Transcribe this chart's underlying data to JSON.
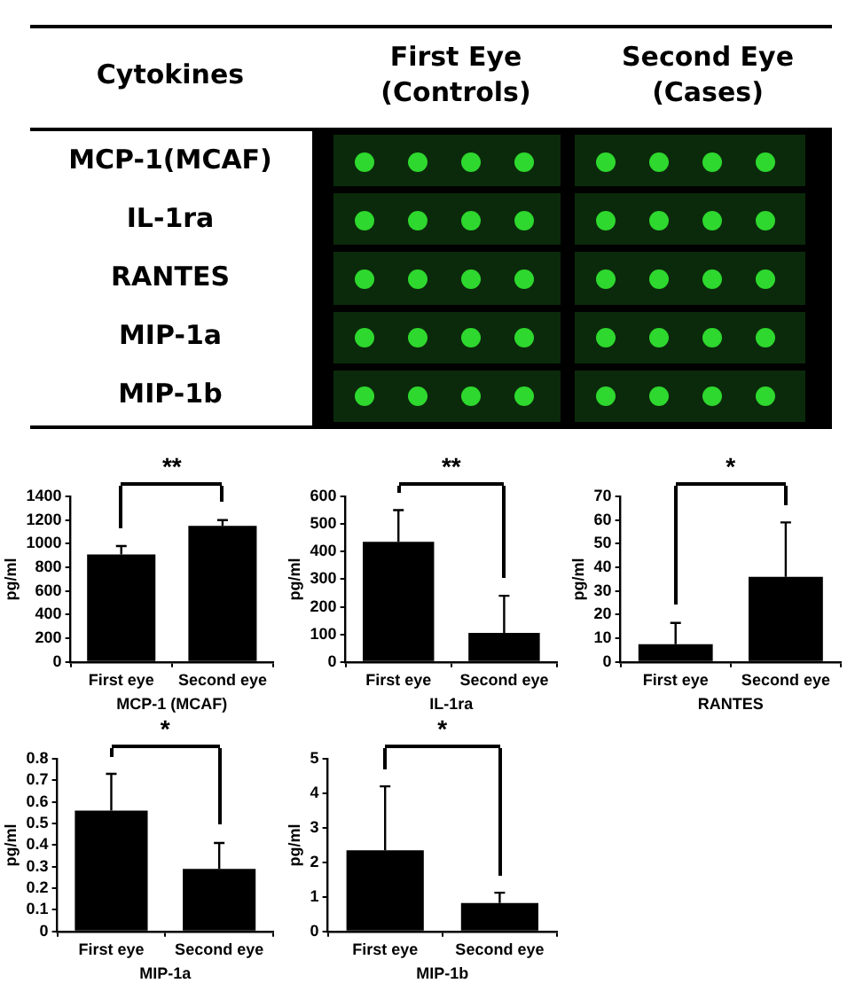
{
  "chart_data": [
    {
      "type": "other",
      "annotations": [
        "Cytokines",
        "First Eye\n(Controls)",
        "Second Eye\n(Cases)",
        "MCP-1(MCAF)",
        "IL-1ra",
        "RANTES",
        "MIP-1a",
        "MIP-1b"
      ]
    },
    {
      "type": "bar",
      "categories": [
        "First eye",
        "Second eye"
      ],
      "values": [
        910,
        1150
      ],
      "errors": [
        [
          910,
          980
        ],
        [
          1150,
          1200
        ]
      ],
      "color": "#000000",
      "xlabel": "MCP-1 (MCAF)",
      "ylabel": "pg/ml",
      "ylim": [
        0,
        1400
      ],
      "yticks": [
        0,
        200,
        400,
        600,
        800,
        1000,
        1200,
        1400
      ],
      "annotations": [
        "**"
      ],
      "grid": false,
      "legend": false
    },
    {
      "type": "bar",
      "categories": [
        "First eye",
        "Second eye"
      ],
      "values": [
        435,
        105
      ],
      "errors": [
        [
          435,
          550
        ],
        [
          105,
          240
        ]
      ],
      "color": "#000000",
      "xlabel": "IL-1ra",
      "ylabel": "pg/ml",
      "ylim": [
        0,
        600
      ],
      "yticks": [
        0,
        100,
        200,
        300,
        400,
        500,
        600
      ],
      "annotations": [
        "**"
      ],
      "grid": false,
      "legend": false
    },
    {
      "type": "bar",
      "categories": [
        "First eye",
        "Second eye"
      ],
      "values": [
        7.5,
        36
      ],
      "errors": [
        [
          7.5,
          16.5
        ],
        [
          36,
          59
        ]
      ],
      "color": "#000000",
      "xlabel": "RANTES",
      "ylabel": "pg/ml",
      "ylim": [
        0,
        70
      ],
      "yticks": [
        0,
        10,
        20,
        30,
        40,
        50,
        60,
        70
      ],
      "annotations": [
        "*"
      ],
      "grid": false,
      "legend": false
    },
    {
      "type": "bar",
      "categories": [
        "First eye",
        "Second eye"
      ],
      "values": [
        0.56,
        0.29
      ],
      "errors": [
        [
          0.56,
          0.73
        ],
        [
          0.29,
          0.41
        ]
      ],
      "color": "#000000",
      "xlabel": "MIP-1a",
      "ylabel": "pg/ml",
      "ylim": [
        0,
        0.8
      ],
      "yticks": [
        0,
        0.1,
        0.2,
        0.3,
        0.4,
        0.5,
        0.6,
        0.7,
        0.8
      ],
      "annotations": [
        "*"
      ],
      "grid": false,
      "legend": false
    },
    {
      "type": "bar",
      "categories": [
        "First eye",
        "Second eye"
      ],
      "values": [
        2.35,
        0.82
      ],
      "errors": [
        [
          2.35,
          4.2
        ],
        [
          0.82,
          1.12
        ]
      ],
      "color": "#000000",
      "xlabel": "MIP-1b",
      "ylabel": "pg/ml",
      "ylim": [
        0,
        5
      ],
      "yticks": [
        0,
        1,
        2,
        3,
        4,
        5
      ],
      "annotations": [
        "*"
      ],
      "grid": false,
      "legend": false
    }
  ]
}
